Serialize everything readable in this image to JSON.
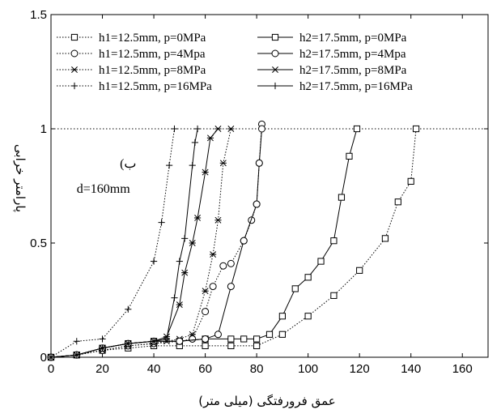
{
  "chart_data": {
    "type": "line",
    "xlabel": "عمق فرورفتگی (میلی متر)",
    "ylabel": "پارامتر خرابی",
    "xlim": [
      0,
      170
    ],
    "ylim": [
      0,
      1.5
    ],
    "xticks": [
      "0",
      "20",
      "40",
      "60",
      "80",
      "100",
      "120",
      "140",
      "160"
    ],
    "yticks": [
      "0",
      "0.5",
      "1",
      "1.5"
    ],
    "reference_line": {
      "y": 1,
      "style": "dotted"
    },
    "grid": false,
    "legend_placement": "top-left, two columns",
    "annotations": [
      {
        "text": "ب)",
        "x": 30,
        "y": 0.83
      },
      {
        "text": "d=160mm",
        "x": 10,
        "y": 0.72
      }
    ],
    "series": [
      {
        "name": "h1=12.5mm, p=0MPa",
        "line": "dotted",
        "marker": "square",
        "x": [
          0,
          10,
          20,
          30,
          40,
          50,
          60,
          70,
          80,
          90,
          100,
          110,
          120,
          130,
          135,
          140,
          142
        ],
        "y": [
          0,
          0.01,
          0.03,
          0.04,
          0.05,
          0.05,
          0.05,
          0.05,
          0.05,
          0.1,
          0.18,
          0.27,
          0.38,
          0.52,
          0.68,
          0.77,
          1.0
        ]
      },
      {
        "name": "h1=12.5mm, p=4Mpa",
        "line": "dotted",
        "marker": "circle",
        "x": [
          0,
          10,
          20,
          30,
          40,
          50,
          55,
          60,
          63,
          67,
          70,
          75,
          78,
          80,
          81,
          82
        ],
        "y": [
          0,
          0.01,
          0.03,
          0.05,
          0.06,
          0.07,
          0.08,
          0.2,
          0.31,
          0.4,
          0.41,
          0.51,
          0.6,
          0.67,
          0.85,
          1.02
        ]
      },
      {
        "name": "h1=12.5mm, p=8MPa",
        "line": "dotted",
        "marker": "asterisk",
        "x": [
          0,
          10,
          20,
          30,
          40,
          45,
          50,
          55,
          60,
          63,
          65,
          67,
          70
        ],
        "y": [
          0,
          0.01,
          0.03,
          0.05,
          0.06,
          0.07,
          0.08,
          0.1,
          0.29,
          0.45,
          0.6,
          0.85,
          1.0
        ]
      },
      {
        "name": "h1=12.5mm, p=16MPa",
        "line": "dotted",
        "marker": "plus",
        "x": [
          0,
          10,
          20,
          30,
          40,
          43,
          46,
          48
        ],
        "y": [
          0,
          0.07,
          0.08,
          0.21,
          0.42,
          0.59,
          0.84,
          1.0
        ]
      },
      {
        "name": "h2=17.5mm, p=0MPa",
        "line": "solid",
        "marker": "square",
        "x": [
          0,
          10,
          20,
          30,
          40,
          50,
          60,
          70,
          75,
          80,
          85,
          90,
          95,
          100,
          105,
          110,
          113,
          116,
          119
        ],
        "y": [
          0,
          0.01,
          0.04,
          0.06,
          0.07,
          0.07,
          0.08,
          0.08,
          0.08,
          0.08,
          0.1,
          0.18,
          0.3,
          0.35,
          0.42,
          0.51,
          0.7,
          0.88,
          1.0
        ]
      },
      {
        "name": "h2=17.5mm, p=4Mpa",
        "line": "solid",
        "marker": "circle",
        "x": [
          0,
          10,
          20,
          30,
          40,
          50,
          60,
          65,
          70,
          75,
          80,
          81,
          82
        ],
        "y": [
          0,
          0.01,
          0.04,
          0.06,
          0.07,
          0.07,
          0.08,
          0.1,
          0.31,
          0.51,
          0.67,
          0.85,
          1.0
        ]
      },
      {
        "name": "h2=17.5mm, p=8MPa",
        "line": "solid",
        "marker": "asterisk",
        "x": [
          0,
          10,
          20,
          30,
          40,
          45,
          50,
          52,
          55,
          57,
          60,
          62,
          65
        ],
        "y": [
          0,
          0.01,
          0.04,
          0.06,
          0.07,
          0.09,
          0.23,
          0.37,
          0.5,
          0.61,
          0.81,
          0.96,
          1.0
        ]
      },
      {
        "name": "h2=17.5mm, p=16MPa",
        "line": "solid",
        "marker": "plus",
        "x": [
          0,
          10,
          20,
          30,
          40,
          45,
          48,
          50,
          52,
          55,
          56,
          57
        ],
        "y": [
          0,
          0.01,
          0.04,
          0.06,
          0.07,
          0.08,
          0.26,
          0.42,
          0.52,
          0.84,
          0.94,
          1.0
        ]
      }
    ]
  }
}
